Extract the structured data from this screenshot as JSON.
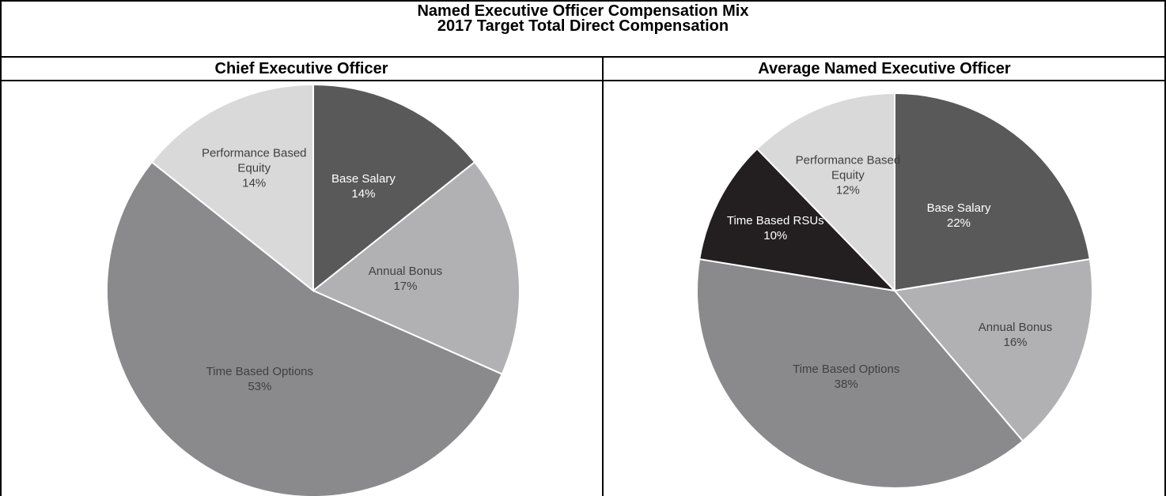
{
  "header": {
    "title": "Named Executive Officer Compensation Mix",
    "subtitle": "2017 Target Total Direct Compensation"
  },
  "chart_data": [
    {
      "type": "pie",
      "title": "Chief Executive Officer",
      "categories": [
        "Base Salary",
        "Annual Bonus",
        "Time Based Options",
        "Performance Based Equity"
      ],
      "values": [
        14,
        17,
        53,
        14
      ],
      "value_labels": [
        "14%",
        "17%",
        "53%",
        "14%"
      ],
      "colors": [
        "#595959",
        "#b1b1b3",
        "#8a8a8c",
        "#d9d9d9"
      ]
    },
    {
      "type": "pie",
      "title": "Average Named Executive Officer",
      "categories": [
        "Base Salary",
        "Annual Bonus",
        "Time Based Options",
        "Time Based RSUs",
        "Performance Based Equity"
      ],
      "values": [
        22,
        16,
        38,
        10,
        12
      ],
      "value_labels": [
        "22%",
        "16%",
        "38%",
        "10%",
        "12%"
      ],
      "colors": [
        "#595959",
        "#b1b1b3",
        "#8a8a8c",
        "#231f20",
        "#d9d9d9"
      ]
    }
  ]
}
